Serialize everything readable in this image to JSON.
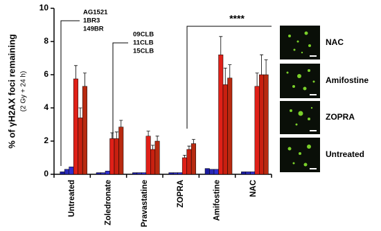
{
  "chart_data": {
    "type": "bar",
    "ylabel": "% of γH2AX foci remaining",
    "ylabel_sub": "(2 Gy + 24 h)",
    "categories": [
      "Untreated",
      "Zoledronate",
      "Pravastatine",
      "ZOPRA",
      "Amifostine",
      "NAC"
    ],
    "series": [
      {
        "name": "AG1521",
        "color": "#1a1aa0",
        "values": [
          0.15,
          0.1,
          0.1,
          0.1,
          0.35,
          0.15
        ]
      },
      {
        "name": "1BR3",
        "color": "#2a2ab8",
        "values": [
          0.3,
          0.1,
          0.1,
          0.1,
          0.3,
          0.15
        ]
      },
      {
        "name": "149BR",
        "color": "#3030d0",
        "values": [
          0.45,
          0.2,
          0.1,
          0.1,
          0.3,
          0.15
        ]
      },
      {
        "name": "09CLB",
        "color": "#e02018",
        "values": [
          5.75,
          2.15,
          2.3,
          1.0,
          7.2,
          5.3
        ],
        "errors": [
          0.8,
          0.35,
          0.3,
          0.15,
          1.1,
          0.8
        ]
      },
      {
        "name": "11CLB",
        "color": "#c82010",
        "values": [
          3.4,
          2.15,
          1.5,
          1.5,
          5.4,
          6.0
        ],
        "errors": [
          0.6,
          0.4,
          0.25,
          0.2,
          1.0,
          1.2
        ]
      },
      {
        "name": "15CLB",
        "color": "#b82a10",
        "values": [
          5.3,
          2.85,
          2.0,
          1.85,
          5.8,
          6.0
        ],
        "errors": [
          0.8,
          0.4,
          0.3,
          0.25,
          0.8,
          0.9
        ]
      }
    ],
    "ylim": [
      0,
      10
    ],
    "yticks": [
      0,
      2,
      4,
      6,
      8,
      10
    ],
    "significance": "****"
  },
  "image_panels": {
    "labels": [
      "NAC",
      "Amifostine",
      "ZOPRA",
      "Untreated"
    ]
  }
}
